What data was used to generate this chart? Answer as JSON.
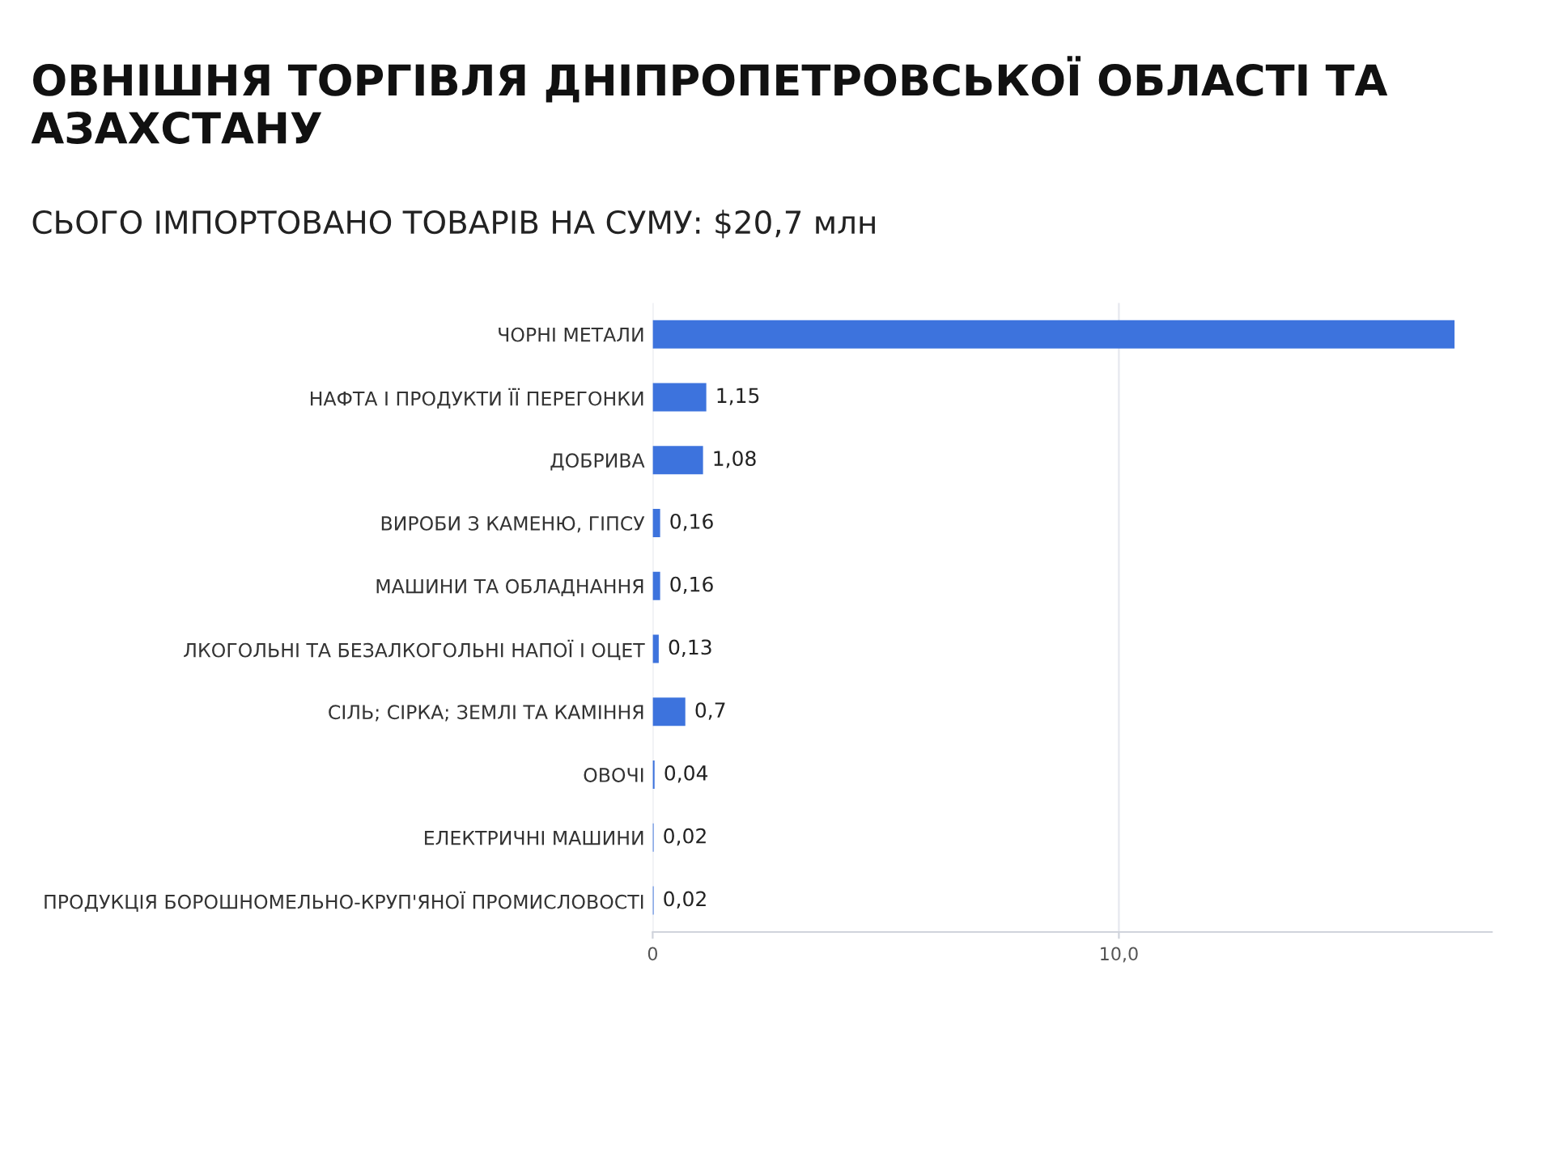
{
  "chart_data": {
    "type": "bar",
    "orientation": "horizontal",
    "title": "ОВНІШНЯ ТОРГІВЛЯ ДНІПРОПЕТРОВСЬКОЇ ОБЛАСТІ ТА\nАЗАХСТАНУ",
    "subtitle": "СЬОГО ІМПОРТОВАНО ТОВАРІВ НА СУМУ: $20,7 млн",
    "categories": [
      "ЧОРНІ МЕТАЛИ",
      "НАФТА І ПРОДУКТИ ЇЇ ПЕРЕГОНКИ",
      "ДОБРИВА",
      "ВИРОБИ З КАМЕНЮ, ГІПСУ",
      "МАШИНИ ТА ОБЛАДНАННЯ",
      "ЛКОГОЛЬНІ ТА БЕЗАЛКОГОЛЬНІ НАПОЇ І ОЦЕТ",
      "СІЛЬ; СІРКА; ЗЕМЛІ ТА КАМІННЯ",
      "ОВОЧІ",
      "ЕЛЕКТРИЧНІ МАШИНИ",
      "ПРОДУКЦІЯ БОРОШНОМЕЛЬНО-КРУП'ЯНОЇ ПРОМИСЛОВОСТІ"
    ],
    "values": [
      17.2,
      1.15,
      1.08,
      0.16,
      0.16,
      0.13,
      0.7,
      0.04,
      0.02,
      0.02
    ],
    "value_labels": [
      null,
      "1,15",
      "1,08",
      "0,16",
      "0,16",
      "0,13",
      "0,7",
      "0,04",
      "0,02",
      "0,02"
    ],
    "color": "#3d73dd",
    "xlim": [
      0,
      18
    ],
    "xticks": [
      0,
      {
        "value": 10,
        "label": "10,0"
      }
    ],
    "grid": "x"
  }
}
